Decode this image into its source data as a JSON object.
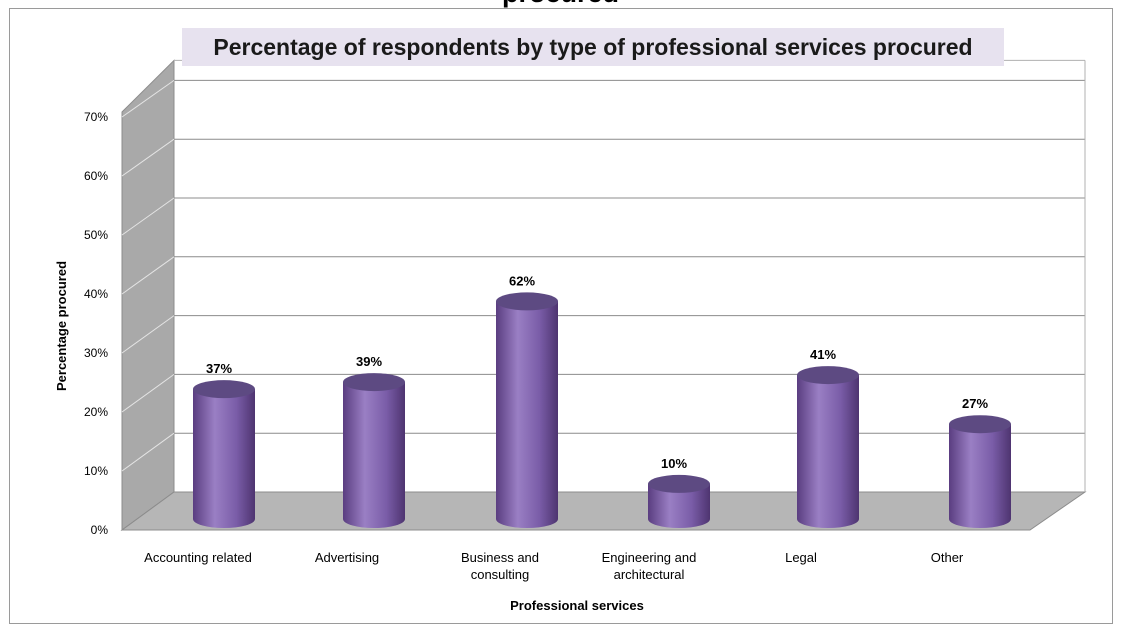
{
  "window": {
    "cut_title": "procured"
  },
  "colors": {
    "bar_top": "#5d4a82",
    "bar_body_dark": "#5e3f86",
    "bar_body_light": "#9a7fc4",
    "wall": "#a9a9a9",
    "floor": "#b6b6b6",
    "title_bg": "#e7e2ef"
  },
  "chart_data": {
    "type": "bar",
    "title": "Percentage of respondents by type of professional services procured",
    "xlabel": "Professional services",
    "ylabel": "Percentage procured",
    "categories": [
      [
        "Accounting related"
      ],
      [
        "Advertising"
      ],
      [
        "Business and",
        "consulting"
      ],
      [
        "Engineering and",
        "architectural"
      ],
      [
        "Legal"
      ],
      [
        "Other"
      ]
    ],
    "values": [
      37,
      39,
      62,
      10,
      41,
      27
    ],
    "data_labels": [
      "37%",
      "39%",
      "62%",
      "10%",
      "41%",
      "27%"
    ],
    "y_ticks": [
      "0%",
      "10%",
      "20%",
      "30%",
      "40%",
      "50%",
      "60%",
      "70%"
    ],
    "ylim": [
      0,
      70
    ],
    "grid": true,
    "legend": "none"
  }
}
